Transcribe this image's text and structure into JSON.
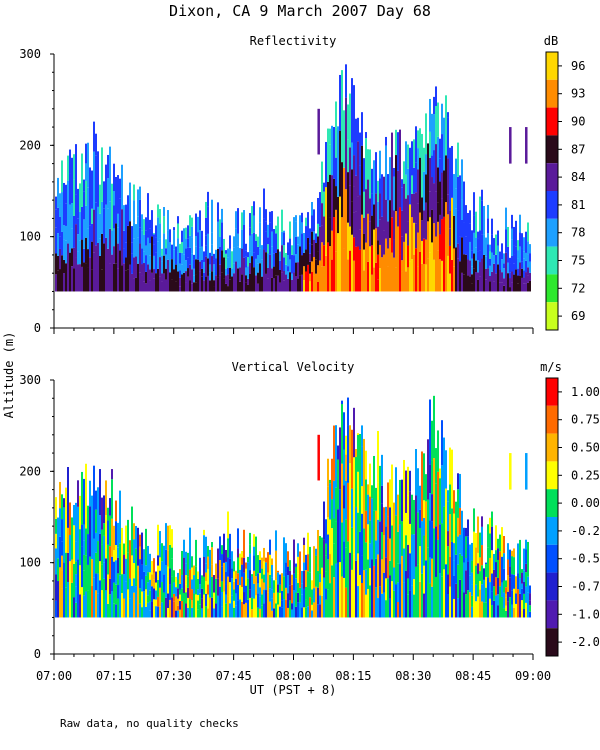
{
  "page": {
    "title": "Dixon, CA  9 March 2007  Day  68",
    "ylabel": "Altitude (m)",
    "xlabel": "UT  (PST + 8)",
    "footnote": "Raw data, no quality checks"
  },
  "chart_data": [
    {
      "type": "heatmap",
      "title": "Reflectivity",
      "colorbar_unit": "dB",
      "colorbar_ticks": [
        "96",
        "93",
        "90",
        "87",
        "84",
        "81",
        "78",
        "75",
        "72",
        "69"
      ],
      "colorbar_colors": [
        "#FFD700",
        "#FF8C00",
        "#FF0000",
        "#2A0A1A",
        "#5A1A9A",
        "#1E3CFF",
        "#1EA0FF",
        "#2EE8B4",
        "#2EE82E",
        "#C8FF1E"
      ],
      "xlim": [
        "07:00",
        "09:00"
      ],
      "x_ticks": [
        "07:00",
        "07:15",
        "07:30",
        "07:45",
        "08:00",
        "08:15",
        "08:30",
        "08:45",
        "09:00"
      ],
      "ylim": [
        0,
        300
      ],
      "y_ticks": [
        "0",
        "100",
        "200",
        "300"
      ],
      "echo_base_m": 40,
      "echo_top_m": [
        {
          "time": "07:00",
          "alt": 200
        },
        {
          "time": "07:10",
          "alt": 220
        },
        {
          "time": "07:20",
          "alt": 160
        },
        {
          "time": "07:30",
          "alt": 140
        },
        {
          "time": "07:50",
          "alt": 140
        },
        {
          "time": "08:05",
          "alt": 140
        },
        {
          "time": "08:12",
          "alt": 300
        },
        {
          "time": "08:20",
          "alt": 220
        },
        {
          "time": "08:30",
          "alt": 220
        },
        {
          "time": "08:35",
          "alt": 280
        },
        {
          "time": "08:45",
          "alt": 160
        },
        {
          "time": "09:00",
          "alt": 120
        }
      ]
    },
    {
      "type": "heatmap",
      "title": "Vertical Velocity",
      "colorbar_unit": "m/s",
      "colorbar_ticks": [
        "1.00",
        "0.75",
        "0.50",
        "0.25",
        "0.00",
        "-0.25",
        "-0.50",
        "-0.75",
        "-1.00",
        "-2.00"
      ],
      "colorbar_colors": [
        "#FF0000",
        "#FF6A00",
        "#FFB400",
        "#FFFF00",
        "#00E05A",
        "#00A0FF",
        "#0050FF",
        "#2020D0",
        "#501AB0",
        "#2A0A1A"
      ],
      "xlim": [
        "07:00",
        "09:00"
      ],
      "x_ticks": [
        "07:00",
        "07:15",
        "07:30",
        "07:45",
        "08:00",
        "08:15",
        "08:30",
        "08:45",
        "09:00"
      ],
      "ylim": [
        0,
        300
      ],
      "y_ticks": [
        "0",
        "100",
        "200",
        "300"
      ],
      "echo_base_m": 40
    }
  ]
}
